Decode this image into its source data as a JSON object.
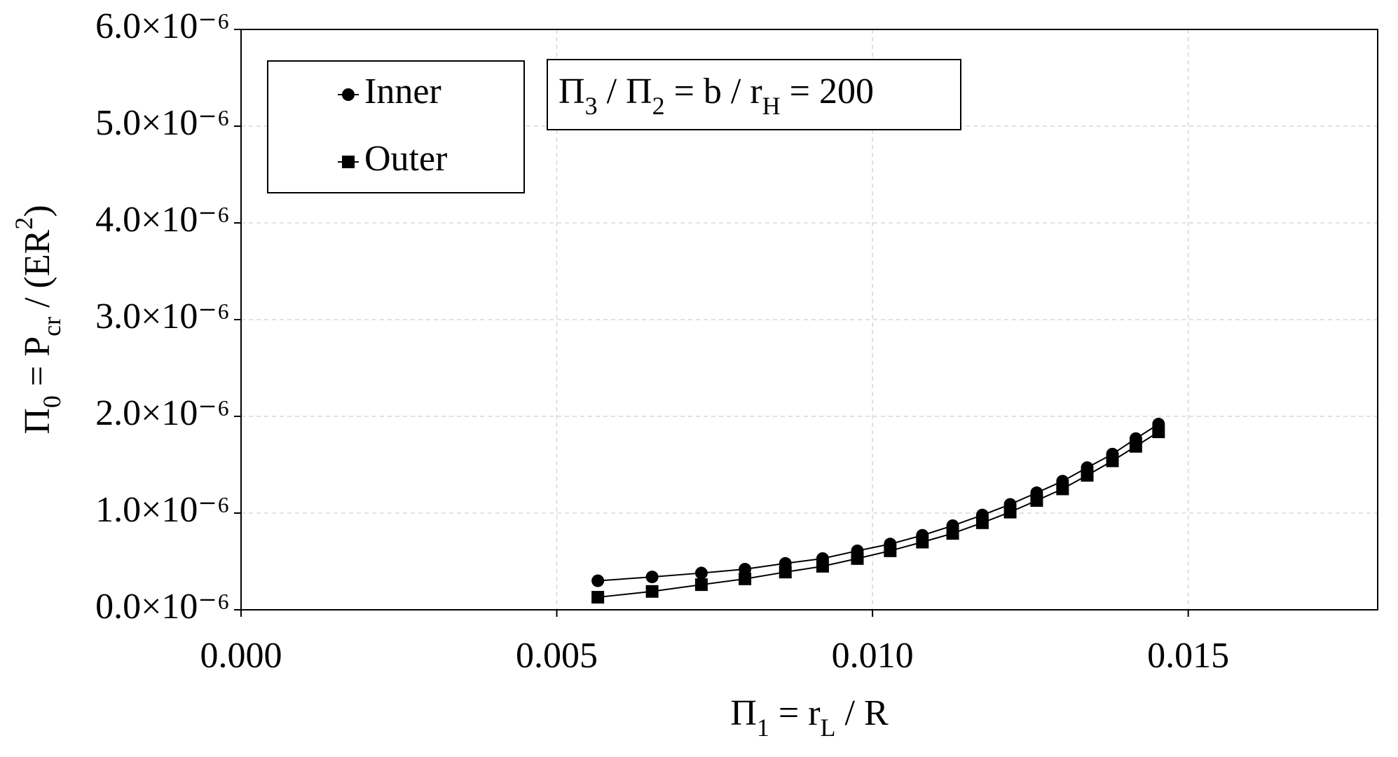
{
  "chart_data": {
    "type": "line",
    "xlabel": [
      {
        "text": "Π"
      },
      {
        "text": "1",
        "shift": "sub"
      },
      {
        "text": " = r"
      },
      {
        "text": "L",
        "shift": "sub"
      },
      {
        "text": " / R"
      }
    ],
    "ylabel": [
      {
        "text": "Π"
      },
      {
        "text": "0",
        "shift": "sub"
      },
      {
        "text": " = P"
      },
      {
        "text": "cr",
        "shift": "sub"
      },
      {
        "text": " / (ER"
      },
      {
        "text": "2",
        "shift": "super"
      },
      {
        "text": ")"
      }
    ],
    "annotation": [
      {
        "text": "Π"
      },
      {
        "text": "3",
        "shift": "sub"
      },
      {
        "text": " / Π"
      },
      {
        "text": "2",
        "shift": "sub"
      },
      {
        "text": " = b / r"
      },
      {
        "text": "H",
        "shift": "sub"
      },
      {
        "text": " = 200"
      }
    ],
    "x": [
      0.00565,
      0.00651,
      0.00729,
      0.00798,
      0.00862,
      0.00921,
      0.00976,
      0.01028,
      0.01079,
      0.01127,
      0.01174,
      0.01218,
      0.0126,
      0.01301,
      0.0134,
      0.0138,
      0.01417,
      0.01453
    ],
    "series": [
      {
        "name": "Inner",
        "color": "#000000",
        "marker": "circle",
        "values": [
          3e-07,
          3.4e-07,
          3.8e-07,
          4.2e-07,
          4.8e-07,
          5.3e-07,
          6.1e-07,
          6.8e-07,
          7.7e-07,
          8.7e-07,
          9.8e-07,
          1.09e-06,
          1.21e-06,
          1.33e-06,
          1.47e-06,
          1.61e-06,
          1.77e-06,
          1.92e-06
        ]
      },
      {
        "name": "Outer",
        "color": "#000000",
        "marker": "square",
        "values": [
          1.3e-07,
          1.9e-07,
          2.6e-07,
          3.2e-07,
          3.9e-07,
          4.5e-07,
          5.3e-07,
          6.1e-07,
          7e-07,
          7.9e-07,
          9e-07,
          1.01e-06,
          1.13e-06,
          1.25e-06,
          1.39e-06,
          1.54e-06,
          1.69e-06,
          1.84e-06
        ]
      }
    ],
    "xlim": [
      0,
      0.018
    ],
    "xticks": [
      {
        "value": 0,
        "label": "0.000"
      },
      {
        "value": 0.005,
        "label": "0.005"
      },
      {
        "value": 0.01,
        "label": "0.010"
      },
      {
        "value": 0.015,
        "label": "0.015"
      }
    ],
    "ylim": [
      0,
      6e-06
    ],
    "yticks": [
      {
        "value": 0,
        "label": "0.0×10⁻⁶"
      },
      {
        "value": 1e-06,
        "label": "1.0×10⁻⁶"
      },
      {
        "value": 2e-06,
        "label": "2.0×10⁻⁶"
      },
      {
        "value": 3e-06,
        "label": "3.0×10⁻⁶"
      },
      {
        "value": 4e-06,
        "label": "4.0×10⁻⁶"
      },
      {
        "value": 5e-06,
        "label": "5.0×10⁻⁶"
      },
      {
        "value": 6e-06,
        "label": "6.0×10⁻⁶"
      }
    ],
    "grid": true,
    "legend": "upper left"
  }
}
